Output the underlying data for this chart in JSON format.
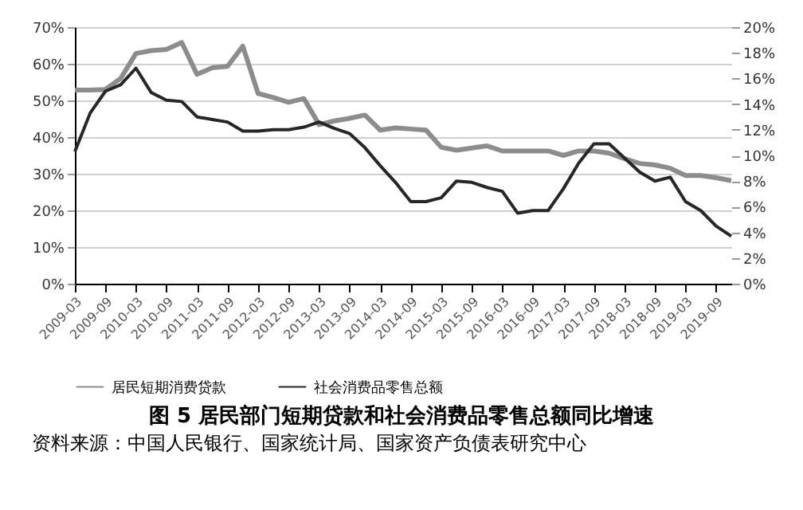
{
  "chart_data": {
    "type": "line",
    "title": "图 5 居民部门短期贷款和社会消费品零售总额同比增速",
    "annotations": [
      "资料来源：中国人民银行、国家统计局、国家资产负债表研究中心"
    ],
    "categories": [
      "2009-03",
      null,
      "2009-09",
      null,
      "2010-03",
      null,
      "2010-09",
      null,
      "2011-03",
      null,
      "2011-09",
      null,
      "2012-03",
      null,
      "2012-09",
      null,
      "2013-03",
      null,
      "2013-09",
      null,
      "2014-03",
      null,
      "2014-09",
      null,
      "2015-03",
      null,
      "2015-09",
      null,
      "2016-03",
      null,
      "2016-09",
      null,
      "2017-03",
      null,
      "2017-09",
      null,
      "2018-03",
      null,
      "2018-09",
      null,
      "2019-03",
      null,
      "2019-09",
      null
    ],
    "series": [
      {
        "name": "居民短期消费贷款",
        "color": "#8c8c8c",
        "values": [
          52.8,
          52.8,
          53,
          56,
          62.8,
          63.6,
          63.9,
          65.8,
          57.1,
          58.9,
          59.3,
          64.8,
          51.9,
          50.8,
          49.5,
          50.5,
          43.4,
          44.4,
          45.1,
          46,
          41.9,
          42.5,
          42.2,
          41.9,
          37.2,
          36.4,
          37,
          37.6,
          36.2,
          36.2,
          36.2,
          36.2,
          35,
          36.2,
          36.2,
          35.6,
          34.1,
          32.8,
          32.4,
          31.5,
          29.5,
          29.5,
          28.9,
          28.1
        ]
      },
      {
        "name": "社会消费品零售总额",
        "color": "#262626",
        "axis": "y2",
        "values": [
          10.3,
          13.3,
          15,
          15.5,
          16.8,
          14.9,
          14.3,
          14.2,
          13,
          12.8,
          12.6,
          11.9,
          11.9,
          12,
          12,
          12.2,
          12.6,
          12.1,
          11.7,
          10.6,
          9.2,
          7.9,
          6.4,
          6.4,
          6.7,
          8,
          7.9,
          7.5,
          7.2,
          5.5,
          5.7,
          5.7,
          7.4,
          9.4,
          10.9,
          10.9,
          9.8,
          8.7,
          8,
          8.3,
          6.4,
          5.7,
          4.5,
          3.7
        ]
      }
    ],
    "ylim": [
      0,
      70
    ],
    "yticks": [
      {
        "value": 0,
        "label": "0%"
      },
      {
        "value": 10,
        "label": "10%"
      },
      {
        "value": 20,
        "label": "20%"
      },
      {
        "value": 30,
        "label": "30%"
      },
      {
        "value": 40,
        "label": "40%"
      },
      {
        "value": 50,
        "label": "50%"
      },
      {
        "value": 60,
        "label": "60%"
      },
      {
        "value": 70,
        "label": "70%"
      }
    ],
    "y2lim": [
      0,
      20
    ],
    "y2ticks": [
      {
        "value": 0,
        "label": "0%"
      },
      {
        "value": 2,
        "label": "2%"
      },
      {
        "value": 4,
        "label": "4%"
      },
      {
        "value": 6,
        "label": "6%"
      },
      {
        "value": 8,
        "label": "8%"
      },
      {
        "value": 10,
        "label": "10%"
      },
      {
        "value": 12,
        "label": "12%"
      },
      {
        "value": 14,
        "label": "14%"
      },
      {
        "value": 16,
        "label": "16%"
      },
      {
        "value": 18,
        "label": "18%"
      },
      {
        "value": 20,
        "label": "20%"
      }
    ],
    "grid": "y",
    "legend": "bottom",
    "marker": "none",
    "line_style": "solid"
  }
}
